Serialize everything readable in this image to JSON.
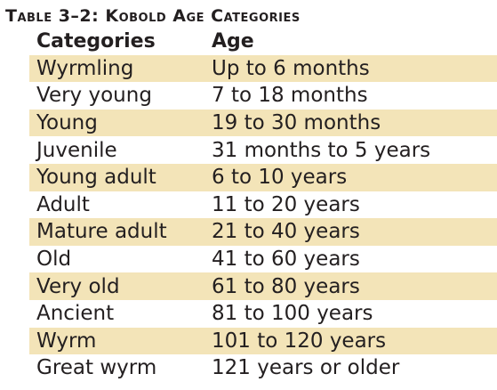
{
  "title": "Table 3–2: Kobold Age Categories",
  "header": {
    "category": "Categories",
    "age": "Age"
  },
  "colors": {
    "shade": "#f3e4b8",
    "text": "#231f20"
  },
  "rows": [
    {
      "category": "Wyrmling",
      "age": "Up to 6 months",
      "shaded": true
    },
    {
      "category": "Very young",
      "age": "7 to 18 months",
      "shaded": false
    },
    {
      "category": "Young",
      "age": "19 to 30 months",
      "shaded": true
    },
    {
      "category": "Juvenile",
      "age": "31 months to 5 years",
      "shaded": false
    },
    {
      "category": "Young adult",
      "age": "6 to 10 years",
      "shaded": true
    },
    {
      "category": "Adult",
      "age": "11 to 20 years",
      "shaded": false
    },
    {
      "category": "Mature adult",
      "age": "21 to 40 years",
      "shaded": true
    },
    {
      "category": "Old",
      "age": "41 to 60 years",
      "shaded": false
    },
    {
      "category": "Very old",
      "age": "61 to 80 years",
      "shaded": true
    },
    {
      "category": "Ancient",
      "age": "81 to 100 years",
      "shaded": false
    },
    {
      "category": "Wyrm",
      "age": "101 to 120 years",
      "shaded": true
    },
    {
      "category": "Great wyrm",
      "age": "121 years or older",
      "shaded": false
    }
  ]
}
